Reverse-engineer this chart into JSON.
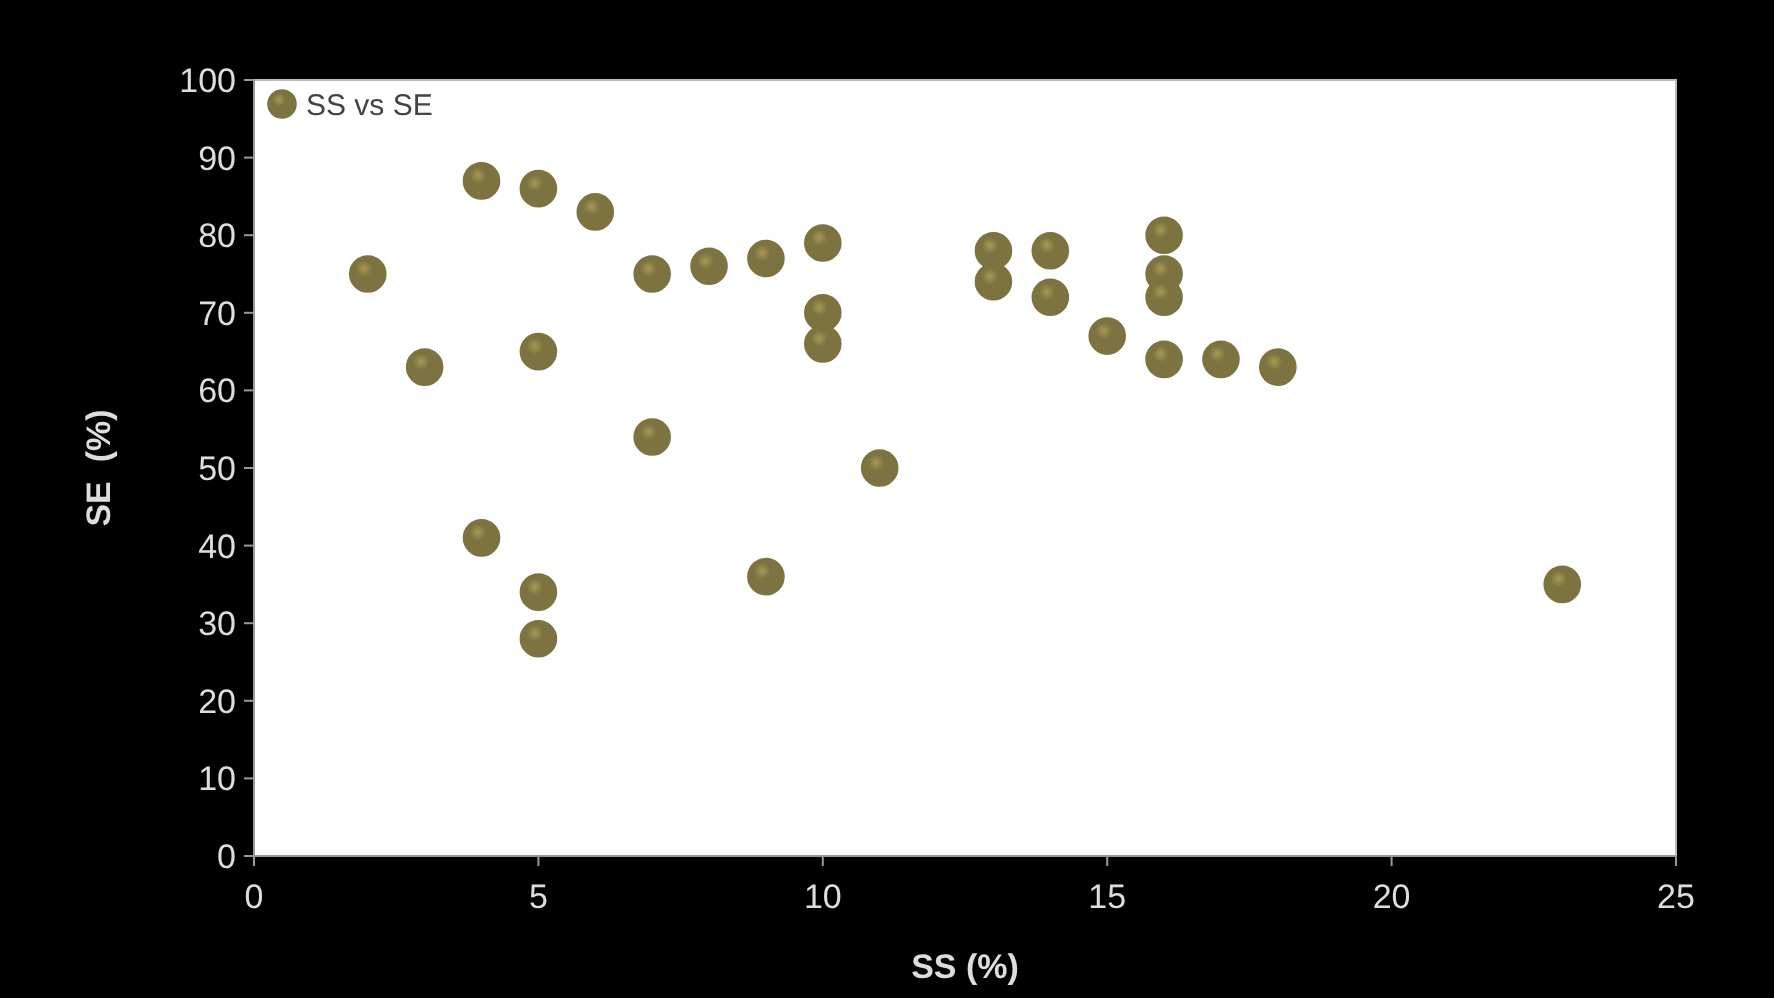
{
  "chart_data": {
    "type": "scatter",
    "xlabel": "SS (%)",
    "ylabel": "SE  (%)",
    "xlim": [
      0,
      25
    ],
    "xticks": [
      0,
      5,
      10,
      15,
      20,
      25
    ],
    "ylim": [
      0,
      100
    ],
    "yticks": [
      0,
      10,
      20,
      30,
      40,
      50,
      60,
      70,
      80,
      90,
      100
    ],
    "grid": false,
    "legend": "top left",
    "marker": "circle",
    "series": [
      {
        "name": "SS vs SE",
        "color": "#7d7340",
        "x": [
          2,
          3,
          4,
          4,
          5,
          5,
          5,
          5,
          6,
          7,
          7,
          8,
          9,
          9,
          10,
          10,
          10,
          11,
          13,
          13,
          14,
          14,
          15,
          16,
          16,
          16,
          16,
          17,
          18,
          23
        ],
        "values": [
          75,
          63,
          87,
          41,
          86,
          65,
          34,
          28,
          83,
          75,
          54,
          76,
          77,
          36,
          79,
          70,
          66,
          50,
          78,
          74,
          78,
          72,
          67,
          80,
          75,
          72,
          64,
          64,
          63,
          35
        ]
      }
    ]
  }
}
